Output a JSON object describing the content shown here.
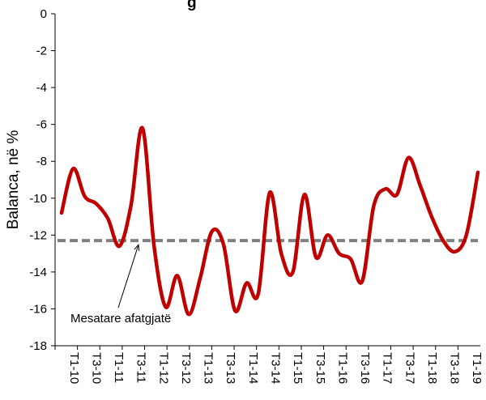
{
  "chart_data": {
    "type": "line",
    "title_fragment": "g",
    "ylabel": "Balanca, në %",
    "ylim": [
      -18,
      0
    ],
    "yticks": [
      0,
      -2,
      -4,
      -6,
      -8,
      -10,
      -12,
      -14,
      -16,
      -18
    ],
    "ytick_labels": [
      "0",
      "-2",
      "-4",
      "-6",
      "-8",
      "-10",
      "-12",
      "-14",
      "-16",
      "-18"
    ],
    "x": [
      "T1-10",
      "T2-10",
      "T3-10",
      "T4-10",
      "T1-11",
      "T2-11",
      "T3-11",
      "T4-11",
      "T1-12",
      "T2-12",
      "T3-12",
      "T4-12",
      "T1-13",
      "T2-13",
      "T3-13",
      "T4-13",
      "T1-14",
      "T2-14",
      "T3-14",
      "T4-14",
      "T1-15",
      "T2-15",
      "T3-15",
      "T4-15",
      "T1-16",
      "T2-16",
      "T3-16",
      "T4-16",
      "T1-17",
      "T2-17",
      "T3-17",
      "T4-17",
      "T1-18",
      "T2-18",
      "T3-18",
      "T4-18",
      "T1-19"
    ],
    "xtick_labels": [
      "T1-10",
      "T3-10",
      "T1-11",
      "T3-11",
      "T1-12",
      "T3-12",
      "T1-13",
      "T3-13",
      "T1-14",
      "T3-14",
      "T1-15",
      "T3-15",
      "T1-16",
      "T3-16",
      "T1-17",
      "T3-17",
      "T1-18",
      "T3-18",
      "T1-19"
    ],
    "series": [
      {
        "values": [
          -10.8,
          -8.4,
          -9.9,
          -10.3,
          -11.1,
          -12.6,
          -10.4,
          -6.2,
          -12.6,
          -15.9,
          -14.2,
          -16.3,
          -14.3,
          -11.8,
          -12.5,
          -16.1,
          -14.6,
          -15.2,
          -9.7,
          -13.0,
          -14.0,
          -9.8,
          -13.2,
          -12.0,
          -13.0,
          -13.3,
          -14.5,
          -10.4,
          -9.5,
          -9.8,
          -7.8,
          -9.3,
          -11.0,
          -12.3,
          -12.9,
          -12.0,
          -8.6
        ],
        "color": "#c00000"
      }
    ],
    "reference_line": {
      "value": -12.3,
      "label": "Mesatare afatgjatë",
      "color": "#808080",
      "style": "dashed"
    },
    "grid": false,
    "legend": "none"
  }
}
